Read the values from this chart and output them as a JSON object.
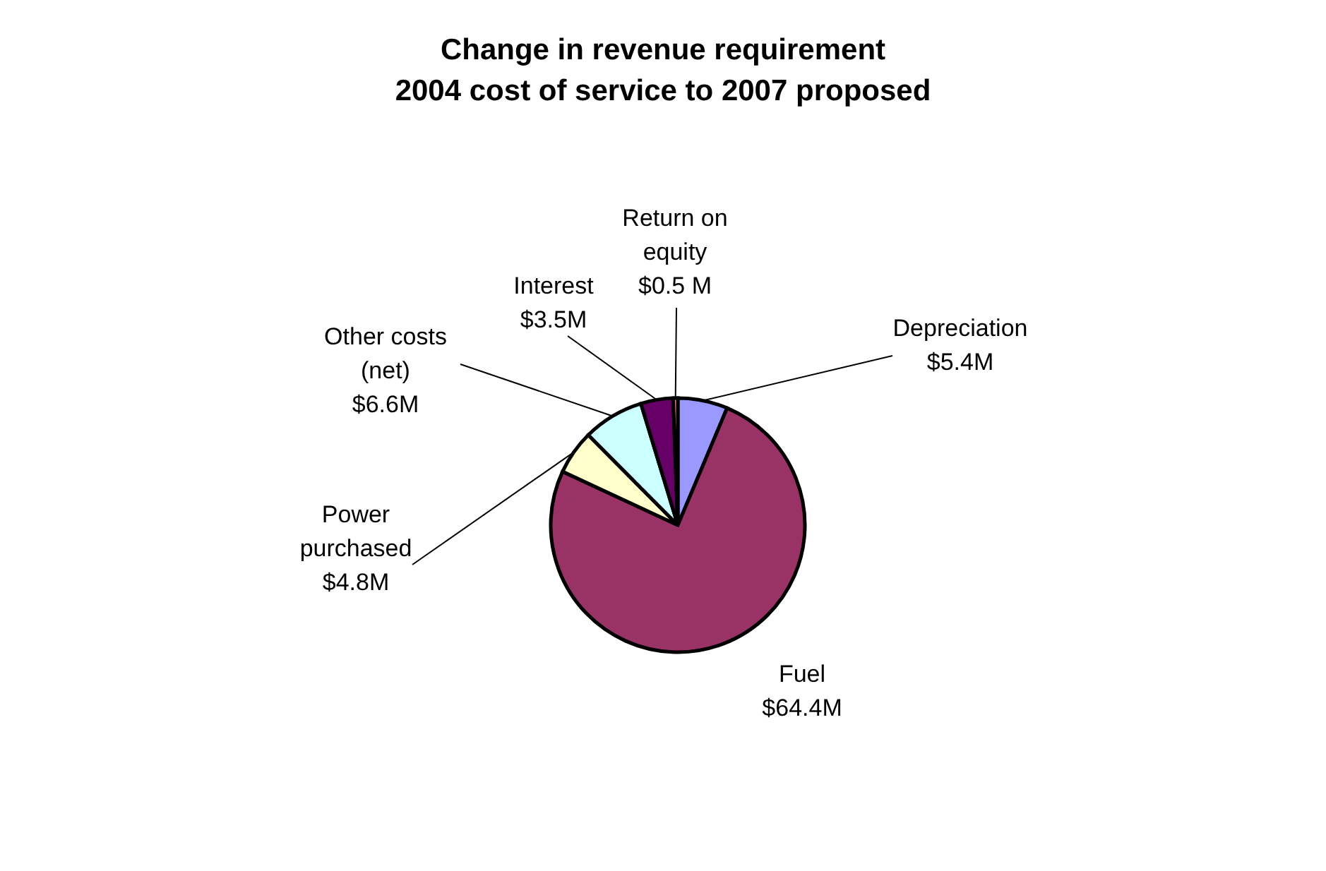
{
  "chart_data": {
    "type": "pie",
    "title": "Change in revenue requirement\n2004 cost of service to 2007 proposed",
    "categories": [
      "Depreciation",
      "Fuel",
      "Power purchased",
      "Other costs (net)",
      "Interest",
      "Return on equity"
    ],
    "values": [
      5.4,
      64.4,
      4.8,
      6.6,
      3.5,
      0.5
    ],
    "value_labels": [
      "$5.4M",
      "$64.4M",
      "$4.8M",
      "$6.6M",
      "$3.5M",
      "$0.5 M"
    ],
    "colors": [
      "#9999ff",
      "#993366",
      "#ffffcc",
      "#ccffff",
      "#660066",
      "#ff8080"
    ]
  }
}
